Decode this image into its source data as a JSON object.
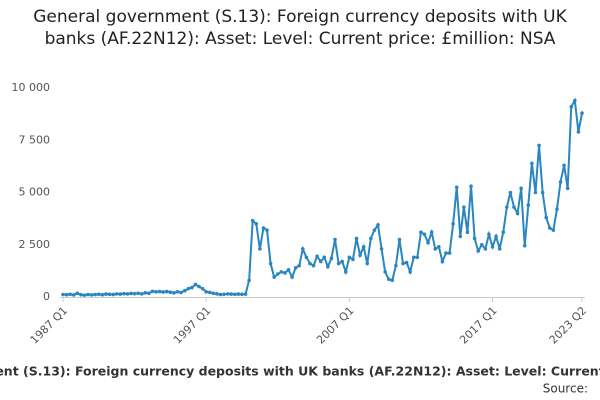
{
  "chart_data": {
    "type": "line",
    "title": "General government (S.13): Foreign currency deposits with UK banks (AF.22N12): Asset: Level: Current price: £million: NSA",
    "source": "Source:",
    "categories": [
      "1987 Q1",
      null,
      null,
      null,
      null,
      null,
      null,
      null,
      null,
      null,
      null,
      null,
      null,
      null,
      null,
      null,
      null,
      null,
      null,
      null,
      null,
      null,
      null,
      null,
      null,
      null,
      null,
      null,
      null,
      null,
      null,
      null,
      null,
      null,
      null,
      null,
      null,
      null,
      null,
      null,
      "1997 Q1",
      null,
      null,
      null,
      null,
      null,
      null,
      null,
      null,
      null,
      null,
      null,
      null,
      null,
      null,
      null,
      null,
      null,
      null,
      null,
      null,
      null,
      null,
      null,
      null,
      null,
      null,
      null,
      null,
      null,
      null,
      null,
      null,
      null,
      null,
      null,
      null,
      null,
      null,
      null,
      "2007 Q1",
      null,
      null,
      null,
      null,
      null,
      null,
      null,
      null,
      null,
      null,
      null,
      null,
      null,
      null,
      null,
      null,
      null,
      null,
      null,
      null,
      null,
      null,
      null,
      null,
      null,
      null,
      null,
      null,
      null,
      null,
      null,
      null,
      null,
      null,
      null,
      null,
      null,
      null,
      null,
      "2017 Q1",
      null,
      null,
      null,
      null,
      null,
      null,
      null,
      null,
      null,
      null,
      null,
      null,
      null,
      null,
      null,
      null,
      null,
      null,
      null,
      null,
      null,
      null,
      null,
      null,
      "2023 Q2"
    ],
    "series": [
      {
        "name": "ent (S.13): Foreign currency deposits with UK banks (AF.22N12): Asset: Level: Current",
        "color": "#2a86c0",
        "values": [
          120,
          110,
          130,
          100,
          180,
          110,
          90,
          120,
          100,
          120,
          130,
          110,
          140,
          130,
          120,
          150,
          140,
          160,
          150,
          170,
          160,
          180,
          150,
          200,
          180,
          270,
          250,
          260,
          240,
          260,
          230,
          200,
          250,
          220,
          300,
          400,
          450,
          600,
          500,
          400,
          250,
          220,
          180,
          150,
          120,
          130,
          150,
          140,
          130,
          140,
          130,
          140,
          800,
          3650,
          3500,
          2300,
          3300,
          3200,
          1600,
          950,
          1100,
          1200,
          1150,
          1300,
          950,
          1400,
          1500,
          2300,
          1900,
          1600,
          1500,
          1950,
          1700,
          1900,
          1450,
          1850,
          2750,
          1600,
          1700,
          1200,
          1900,
          1800,
          2800,
          2000,
          2400,
          1600,
          2800,
          3200,
          3450,
          2300,
          1200,
          850,
          800,
          1500,
          2750,
          1600,
          1650,
          1200,
          1900,
          1900,
          3100,
          3000,
          2600,
          3100,
          2300,
          2400,
          1700,
          2100,
          2100,
          3500,
          5250,
          2900,
          4300,
          3100,
          5300,
          2800,
          2200,
          2500,
          2300,
          3000,
          2400,
          2900,
          2300,
          3100,
          4300,
          5000,
          4300,
          4000,
          5200,
          2450,
          4400,
          6400,
          5000,
          7250,
          5000,
          3800,
          3300,
          3200,
          4200,
          5500,
          6300,
          5200,
          9100,
          9400,
          7900,
          8800
        ]
      }
    ],
    "ylim": [
      0,
      10000
    ],
    "yticks": [
      0,
      {
        "value": 2500,
        "label": "2 500"
      },
      {
        "value": 5000,
        "label": "5 000"
      },
      {
        "value": 7500,
        "label": "7 500"
      },
      {
        "value": 10000,
        "label": "10 000"
      }
    ]
  }
}
